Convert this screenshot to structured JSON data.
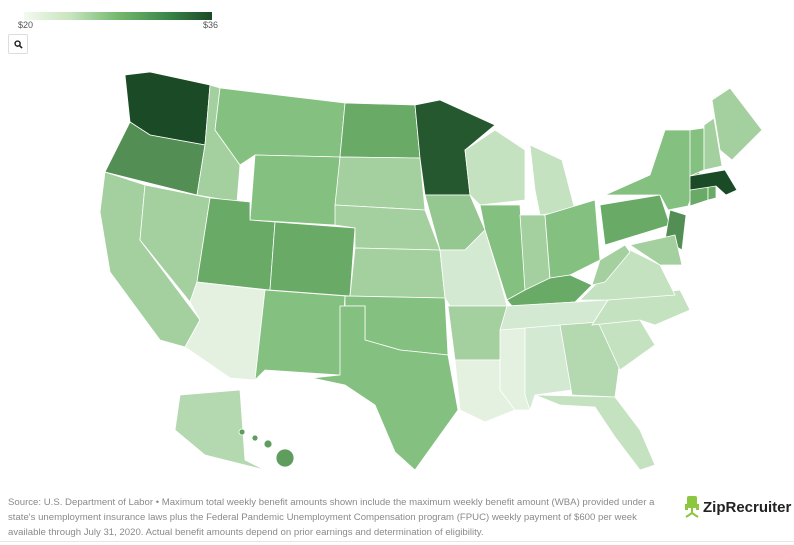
{
  "legend": {
    "min_label": "$20",
    "max_label": "$36",
    "min": 20,
    "max": 36
  },
  "colors": {
    "low": "#f4f9f1",
    "mid": "#74b86f",
    "high": "#1b4a26"
  },
  "zoom_icon": "search-icon",
  "states": {
    "WA": 36,
    "OR": 31,
    "CA": 25,
    "NV": 25,
    "ID": 25,
    "MT": 27,
    "WY": 27,
    "UT": 29,
    "AZ": 21,
    "CO": 29,
    "NM": 27,
    "ND": 29,
    "SD": 25,
    "NE": 25,
    "KS": 25,
    "OK": 27,
    "TX": 27,
    "MN": 35,
    "IA": 26,
    "MO": 22,
    "AR": 25,
    "LA": 21,
    "WI": 23,
    "IL": 27,
    "MI": 23,
    "IN": 25,
    "OH": 27,
    "KY": 29,
    "TN": 22,
    "MS": 21,
    "AL": 22,
    "GA": 24,
    "FL": 23,
    "SC": 23,
    "NC": 23,
    "VA": 23,
    "WV": 25,
    "PA": 29,
    "NY": 27,
    "NJ": 31,
    "MD": 25,
    "CT": 29,
    "RI": 29,
    "MA": 36,
    "VT": 27,
    "NH": 25,
    "ME": 25,
    "AK": 24,
    "HI": 30
  },
  "footer": {
    "source": "Source: U.S. Department of Labor • Maximum total weekly benefit amounts shown include the maximum weekly benefit amount (WBA) provided under a state's unemployment insurance laws plus the Federal Pandemic Unemployment Compensation program (FPUC) weekly payment of $600 per week available through July 31, 2020. Actual benefit amounts depend on prior earnings and determination of eligibility.",
    "logo": "ZipRecruiter"
  }
}
